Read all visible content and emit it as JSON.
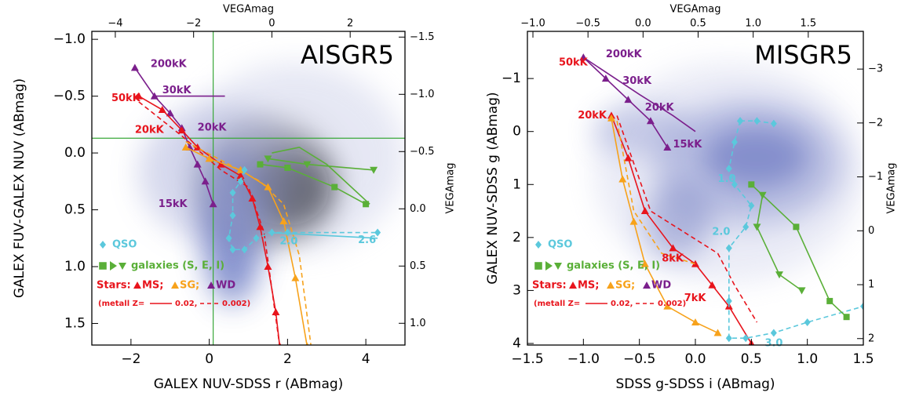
{
  "chart_data": [
    {
      "type": "line",
      "panel_label": "AISGR5",
      "xlabel": "GALEX NUV-SDSS r (ABmag)",
      "ylabel": "GALEX FUV-GALEX NUV (ABmag)",
      "top_label": "VEGAmag",
      "right_label": "VEGAmag",
      "xlim": [
        -3,
        5
      ],
      "xticks": [
        {
          "value": -2,
          "label": "−2"
        },
        0,
        2,
        4
      ],
      "ylim": [
        -1.07,
        1.69
      ],
      "y_inverted": true,
      "yticks": [
        {
          "value": -1.0,
          "label": "−1.0"
        },
        {
          "value": -0.5,
          "label": "−0.5"
        },
        {
          "value": 0.0,
          "label": "0.0"
        },
        {
          "value": 0.5,
          "label": "0.5"
        },
        {
          "value": 1.0,
          "label": "1.0"
        },
        {
          "value": 1.5,
          "label": "1.5"
        }
      ],
      "top_xlim": [
        -4.6,
        3.4
      ],
      "top_xticks": [
        {
          "value": -4,
          "label": "−4"
        },
        {
          "value": -2,
          "label": "−2"
        },
        0,
        2
      ],
      "y2lim": [
        -1.55,
        1.19
      ],
      "y2ticks": [
        {
          "value": -1.5,
          "label": "−1.5"
        },
        {
          "value": -1.0,
          "label": "−1.0"
        },
        {
          "value": -0.5,
          "label": "−0.5"
        },
        {
          "value": 0.0,
          "label": "0.0"
        },
        {
          "value": 0.5,
          "label": "0.5"
        },
        {
          "value": 1.0,
          "label": "1.0"
        }
      ],
      "reference_lines": [
        {
          "axis": "x",
          "value": 0.1,
          "color": "#3aa83a"
        },
        {
          "axis": "y",
          "value": -0.13,
          "color": "#3aa83a"
        }
      ],
      "series": [
        {
          "color": "#7b1f8c",
          "marker": "triangle",
          "dashed": false,
          "x": [
            -1.9,
            -1.4,
            -1.0,
            -0.7,
            -0.5,
            -0.3,
            -0.1,
            0.1
          ],
          "y": [
            -0.75,
            -0.5,
            -0.35,
            -0.22,
            -0.05,
            0.1,
            0.25,
            0.45
          ]
        },
        {
          "color": "#7b1f8c",
          "marker": null,
          "dashed": false,
          "x": [
            -1.4,
            0.4
          ],
          "y": [
            -0.5,
            -0.5
          ]
        },
        {
          "color": "#e8141c",
          "marker": "triangle",
          "dashed": false,
          "x": [
            -1.8,
            -1.2,
            -0.7,
            -0.3,
            0.3,
            0.8,
            1.1,
            1.3,
            1.5,
            1.7,
            1.8
          ],
          "y": [
            -0.5,
            -0.38,
            -0.2,
            -0.05,
            0.1,
            0.2,
            0.4,
            0.65,
            1.0,
            1.4,
            1.7
          ]
        },
        {
          "color": "#e8141c",
          "marker": null,
          "dashed": true,
          "x": [
            -1.8,
            -0.7,
            0.3,
            1.0,
            1.4,
            1.6,
            1.8
          ],
          "y": [
            -0.45,
            -0.15,
            0.15,
            0.3,
            0.7,
            1.2,
            1.7
          ]
        },
        {
          "color": "#f7a21b",
          "marker": "triangle",
          "dashed": false,
          "x": [
            -0.6,
            0.0,
            0.8,
            1.5,
            1.9,
            2.2,
            2.5
          ],
          "y": [
            -0.05,
            0.05,
            0.15,
            0.3,
            0.6,
            1.1,
            1.7
          ]
        },
        {
          "color": "#f7a21b",
          "marker": null,
          "dashed": true,
          "x": [
            -0.6,
            0.5,
            1.3,
            1.9,
            2.3,
            2.6
          ],
          "y": [
            -0.1,
            0.1,
            0.25,
            0.45,
            0.9,
            1.7
          ]
        },
        {
          "color": "#5bc8dc",
          "marker": "diamond",
          "dashed": true,
          "x": [
            0.9,
            0.8,
            0.6,
            0.6,
            0.5,
            0.6,
            0.9,
            1.2,
            1.6,
            2.0,
            4.3
          ],
          "y": [
            0.15,
            0.25,
            0.35,
            0.55,
            0.75,
            0.85,
            0.85,
            0.75,
            0.7,
            0.7,
            0.7
          ]
        },
        {
          "color": "#5bc8dc",
          "marker": null,
          "dashed": false,
          "x": [
            1.5,
            4.3
          ],
          "y": [
            0.7,
            0.75
          ]
        },
        {
          "color": "#5aaf38",
          "marker": "square",
          "dashed": false,
          "x": [
            1.3,
            2.0,
            3.2,
            4.0
          ],
          "y": [
            0.1,
            0.13,
            0.3,
            0.45
          ]
        },
        {
          "color": "#5aaf38",
          "marker": "triangle-down",
          "dashed": false,
          "x": [
            1.5,
            2.5,
            4.2
          ],
          "y": [
            0.05,
            0.1,
            0.15
          ]
        },
        {
          "color": "#5aaf38",
          "marker": null,
          "dashed": false,
          "x": [
            1.6,
            2.3,
            3.0,
            4.1
          ],
          "y": [
            0.0,
            -0.05,
            0.1,
            0.45
          ]
        }
      ],
      "annotations": [
        {
          "text": "200kK",
          "x": -1.5,
          "y": -0.78,
          "color": "#7b1f8c"
        },
        {
          "text": "50kK",
          "x": -2.5,
          "y": -0.48,
          "color": "#e8141c"
        },
        {
          "text": "30kK",
          "x": -1.2,
          "y": -0.55,
          "color": "#7b1f8c"
        },
        {
          "text": "20kK",
          "x": -1.9,
          "y": -0.2,
          "color": "#e8141c"
        },
        {
          "text": "20kK",
          "x": -0.3,
          "y": -0.22,
          "color": "#7b1f8c"
        },
        {
          "text": "15kK",
          "x": -1.3,
          "y": 0.45,
          "color": "#7b1f8c"
        },
        {
          "text": "2.0",
          "x": 1.8,
          "y": 0.78,
          "color": "#5bc8dc"
        },
        {
          "text": "2.6",
          "x": 3.8,
          "y": 0.77,
          "color": "#5bc8dc"
        }
      ],
      "legend": {
        "qso": "QSO",
        "galaxies": "galaxies (S, E, I)",
        "stars": "Stars:",
        "ms": "MS;",
        "sg": "SG;",
        "wd": "WD",
        "metal": "(metall Z=",
        "z1": "0.02,",
        "z2": "0.002)"
      }
    },
    {
      "type": "line",
      "panel_label": "MISGR5",
      "xlabel": "SDSS g-SDSS i (ABmag)",
      "ylabel": "GALEX NUV-SDSS g (ABmag)",
      "top_label": "VEGAmag",
      "right_label": "VEGAmag",
      "xlim": [
        -1.5,
        1.5
      ],
      "xticks": [
        {
          "value": -1.5,
          "label": "−1.5"
        },
        {
          "value": -1.0,
          "label": "−1.0"
        },
        {
          "value": -0.5,
          "label": "−0.5"
        },
        {
          "value": 0.0,
          "label": "0.0"
        },
        {
          "value": 0.5,
          "label": "0.5"
        },
        {
          "value": 1.0,
          "label": "1.0"
        },
        {
          "value": 1.5,
          "label": "1.5"
        }
      ],
      "ylim": [
        -1.89,
        4.03
      ],
      "y_inverted": true,
      "yticks": [
        {
          "value": -1,
          "label": "−1"
        },
        0,
        1,
        2,
        3,
        4
      ],
      "top_xlim": [
        -1.05,
        2.0
      ],
      "top_xticks": [
        {
          "value": -1.0,
          "label": "−1.0"
        },
        {
          "value": -0.5,
          "label": "−0.5"
        },
        {
          "value": 0.0,
          "label": "0.0"
        },
        {
          "value": 0.5,
          "label": "0.5"
        },
        {
          "value": 1.0,
          "label": "1.0"
        },
        {
          "value": 1.5,
          "label": "1.5"
        }
      ],
      "y2lim": [
        -3.7,
        2.12
      ],
      "y2ticks": [
        {
          "value": -3,
          "label": "−3"
        },
        {
          "value": -2,
          "label": "−2"
        },
        {
          "value": -1,
          "label": "−1"
        },
        0,
        1,
        2
      ],
      "reference_lines": [],
      "series": [
        {
          "color": "#7b1f8c",
          "marker": "triangle",
          "dashed": false,
          "x": [
            -1.0,
            -0.8,
            -0.6,
            -0.4,
            -0.25
          ],
          "y": [
            -1.4,
            -1.0,
            -0.6,
            -0.2,
            0.3
          ]
        },
        {
          "color": "#7b1f8c",
          "marker": null,
          "dashed": false,
          "x": [
            -1.0,
            -0.5,
            -0.2,
            0.0
          ],
          "y": [
            -1.4,
            -0.7,
            -0.3,
            0.0
          ]
        },
        {
          "color": "#e8141c",
          "marker": "triangle",
          "dashed": false,
          "x": [
            -0.75,
            -0.6,
            -0.45,
            -0.2,
            0.0,
            0.15,
            0.3,
            0.5
          ],
          "y": [
            -0.3,
            0.5,
            1.5,
            2.2,
            2.5,
            2.9,
            3.3,
            4.0
          ]
        },
        {
          "color": "#e8141c",
          "marker": null,
          "dashed": true,
          "x": [
            -0.7,
            -0.55,
            -0.4,
            -0.1,
            0.2,
            0.35,
            0.55
          ],
          "y": [
            -0.3,
            0.6,
            1.5,
            1.9,
            2.3,
            2.9,
            3.6
          ]
        },
        {
          "color": "#f7a21b",
          "marker": "triangle",
          "dashed": false,
          "x": [
            -0.75,
            -0.65,
            -0.55,
            -0.45,
            -0.25,
            0.0,
            0.2
          ],
          "y": [
            -0.25,
            0.9,
            1.7,
            2.5,
            3.3,
            3.6,
            3.8
          ]
        },
        {
          "color": "#f7a21b",
          "marker": null,
          "dashed": true,
          "x": [
            -0.7,
            -0.55,
            -0.3,
            0.0
          ],
          "y": [
            -0.2,
            1.5,
            2.3,
            2.5
          ]
        },
        {
          "color": "#5bc8dc",
          "marker": "diamond",
          "dashed": true,
          "x": [
            0.4,
            0.35,
            0.3,
            0.35,
            0.5,
            0.45,
            0.3,
            0.3,
            0.3,
            0.45,
            0.7,
            1.0,
            1.5
          ],
          "y": [
            -0.2,
            0.2,
            0.7,
            1.0,
            1.4,
            1.8,
            2.2,
            3.2,
            3.9,
            3.9,
            3.8,
            3.6,
            3.3
          ]
        },
        {
          "color": "#5bc8dc",
          "marker": "diamond",
          "dashed": true,
          "x": [
            0.4,
            0.55,
            0.7
          ],
          "y": [
            -0.2,
            -0.2,
            -0.15
          ]
        },
        {
          "color": "#5aaf38",
          "marker": "square",
          "dashed": false,
          "x": [
            0.5,
            0.9,
            1.2,
            1.35
          ],
          "y": [
            1.0,
            1.8,
            3.2,
            3.5
          ]
        },
        {
          "color": "#5aaf38",
          "marker": "triangle-down",
          "dashed": false,
          "x": [
            0.6,
            0.55,
            0.75,
            0.95
          ],
          "y": [
            1.2,
            1.8,
            2.7,
            3.0
          ]
        }
      ],
      "annotations": [
        {
          "text": "200kK",
          "x": -0.8,
          "y": -1.45,
          "color": "#7b1f8c"
        },
        {
          "text": "50kK",
          "x": -1.22,
          "y": -1.3,
          "color": "#e8141c"
        },
        {
          "text": "30kK",
          "x": -0.65,
          "y": -0.95,
          "color": "#7b1f8c"
        },
        {
          "text": "20kK",
          "x": -0.45,
          "y": -0.45,
          "color": "#7b1f8c"
        },
        {
          "text": "20kK",
          "x": -1.05,
          "y": -0.3,
          "color": "#e8141c"
        },
        {
          "text": "15kK",
          "x": -0.2,
          "y": 0.25,
          "color": "#7b1f8c"
        },
        {
          "text": "8kK",
          "x": -0.3,
          "y": 2.4,
          "color": "#e8141c"
        },
        {
          "text": "7kK",
          "x": -0.1,
          "y": 3.15,
          "color": "#e8141c"
        },
        {
          "text": "1.0",
          "x": 0.2,
          "y": 0.9,
          "color": "#5bc8dc"
        },
        {
          "text": "2.0",
          "x": 0.15,
          "y": 1.9,
          "color": "#5bc8dc"
        },
        {
          "text": "3.0",
          "x": 0.62,
          "y": 4.0,
          "color": "#5bc8dc"
        }
      ],
      "legend": {
        "qso": "QSO",
        "galaxies": "galaxies (S, E, I)",
        "stars": "Stars:",
        "ms": "MS;",
        "sg": "SG;",
        "wd": "WD",
        "metal": "(metall Z=",
        "z1": "0.02,",
        "z2": "0.002)"
      }
    }
  ]
}
